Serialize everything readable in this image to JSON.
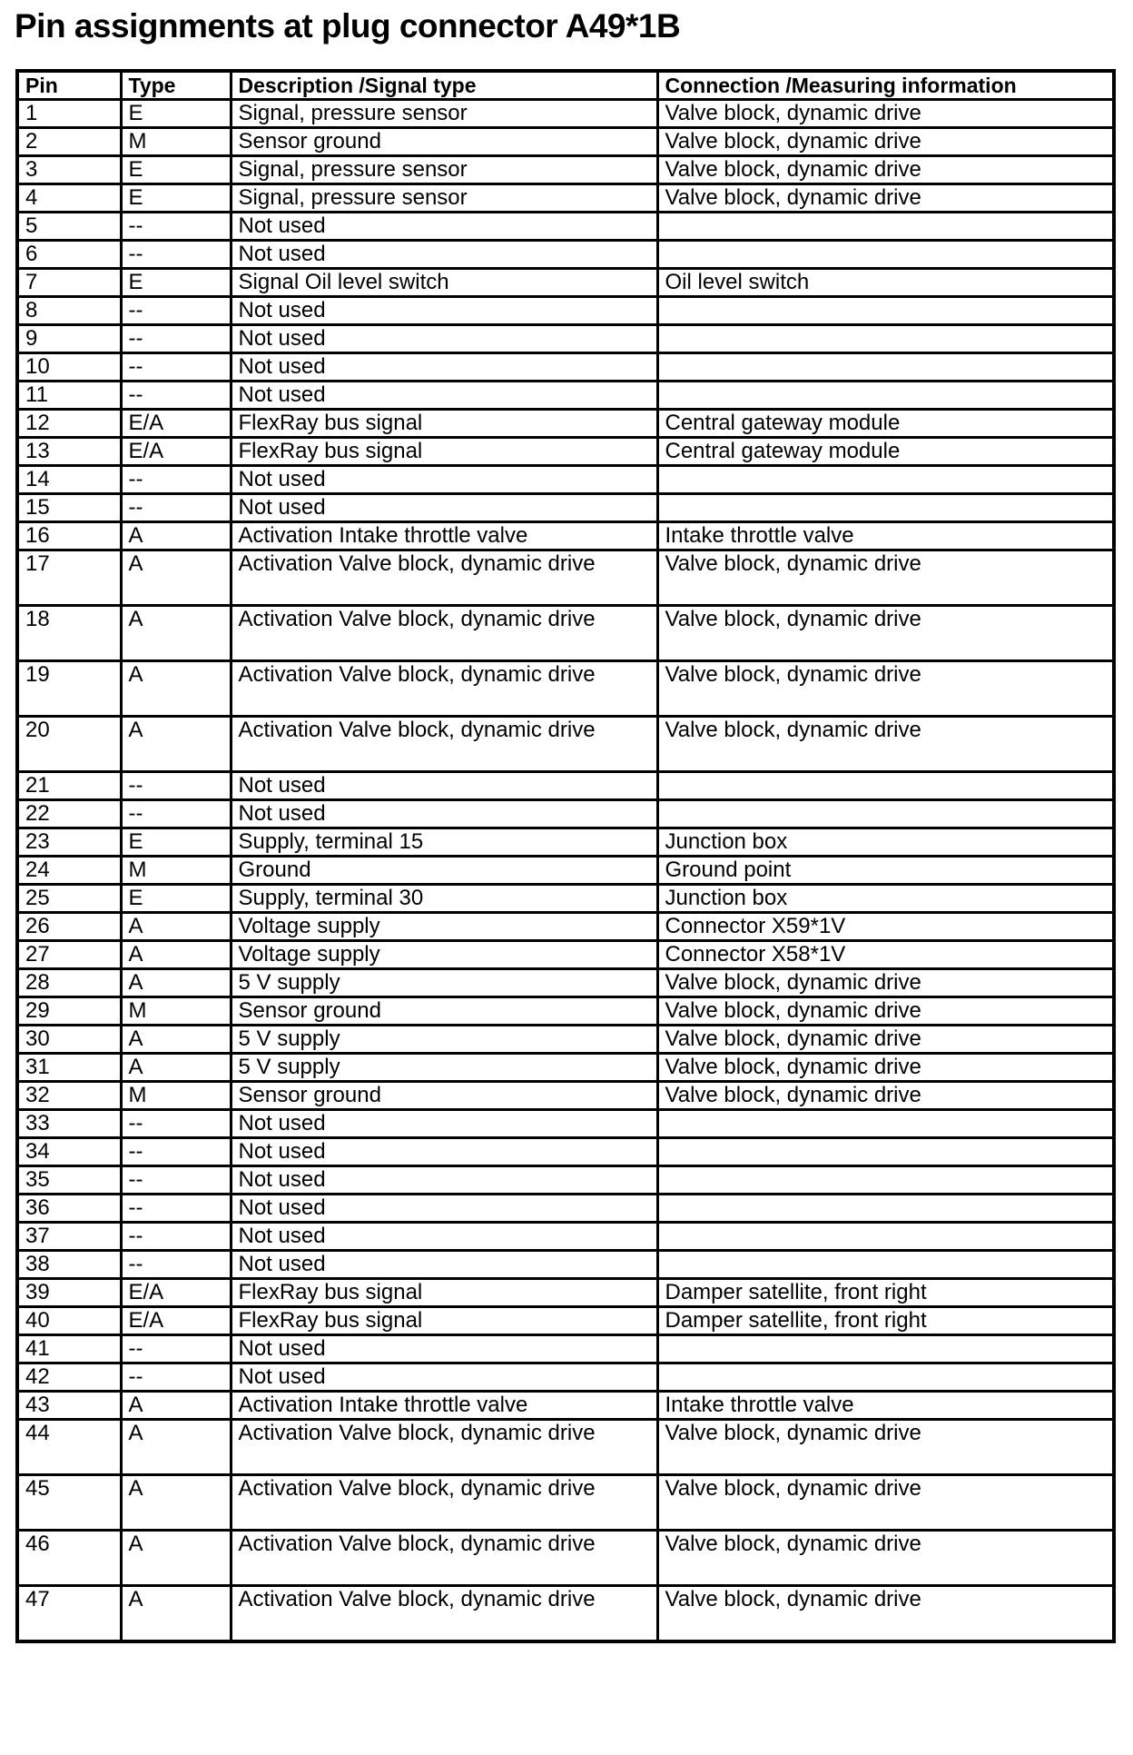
{
  "title": "Pin assignments at plug connector A49*1B",
  "columns": [
    "Pin",
    "Type",
    "Description /Signal type",
    "Connection /Measuring information"
  ],
  "rows": [
    [
      "1",
      "E",
      "Signal, pressure sensor",
      "Valve block, dynamic drive"
    ],
    [
      "2",
      "M",
      "Sensor ground",
      "Valve block, dynamic drive"
    ],
    [
      "3",
      "E",
      "Signal, pressure sensor",
      "Valve block, dynamic drive"
    ],
    [
      "4",
      "E",
      "Signal, pressure sensor",
      "Valve block, dynamic drive"
    ],
    [
      "5",
      "--",
      "Not used",
      ""
    ],
    [
      "6",
      "--",
      "Not used",
      ""
    ],
    [
      "7",
      "E",
      "Signal Oil level switch",
      "Oil level switch"
    ],
    [
      "8",
      "--",
      "Not used",
      ""
    ],
    [
      "9",
      "--",
      "Not used",
      ""
    ],
    [
      "10",
      "--",
      "Not used",
      ""
    ],
    [
      "11",
      "--",
      "Not used",
      ""
    ],
    [
      "12",
      "E/A",
      "FlexRay bus signal",
      "Central gateway module"
    ],
    [
      "13",
      "E/A",
      "FlexRay bus signal",
      "Central gateway module"
    ],
    [
      "14",
      "--",
      "Not used",
      ""
    ],
    [
      "15",
      "--",
      "Not used",
      ""
    ],
    [
      "16",
      "A",
      "Activation Intake throttle valve",
      "Intake throttle valve"
    ],
    [
      "17",
      "A",
      "Activation Valve block, dynamic drive",
      "Valve block, dynamic drive"
    ],
    [
      "18",
      "A",
      "Activation Valve block, dynamic drive",
      "Valve block, dynamic drive"
    ],
    [
      "19",
      "A",
      "Activation Valve block, dynamic drive",
      "Valve block, dynamic drive"
    ],
    [
      "20",
      "A",
      "Activation Valve block, dynamic drive",
      "Valve block, dynamic drive"
    ],
    [
      "21",
      "--",
      "Not used",
      ""
    ],
    [
      "22",
      "--",
      "Not used",
      ""
    ],
    [
      "23",
      "E",
      "Supply, terminal 15",
      "Junction box"
    ],
    [
      "24",
      "M",
      "Ground",
      "Ground point"
    ],
    [
      "25",
      "E",
      "Supply, terminal 30",
      "Junction box"
    ],
    [
      "26",
      "A",
      "Voltage supply",
      "Connector X59*1V"
    ],
    [
      "27",
      "A",
      "Voltage supply",
      "Connector X58*1V"
    ],
    [
      "28",
      "A",
      "5 V supply",
      "Valve block, dynamic drive"
    ],
    [
      "29",
      "M",
      "Sensor ground",
      "Valve block, dynamic drive"
    ],
    [
      "30",
      "A",
      "5 V supply",
      "Valve block, dynamic drive"
    ],
    [
      "31",
      "A",
      "5 V supply",
      "Valve block, dynamic drive"
    ],
    [
      "32",
      "M",
      "Sensor ground",
      "Valve block, dynamic drive"
    ],
    [
      "33",
      "--",
      "Not used",
      ""
    ],
    [
      "34",
      "--",
      "Not used",
      ""
    ],
    [
      "35",
      "--",
      "Not used",
      ""
    ],
    [
      "36",
      "--",
      "Not used",
      ""
    ],
    [
      "37",
      "--",
      "Not used",
      ""
    ],
    [
      "38",
      "--",
      "Not used",
      ""
    ],
    [
      "39",
      "E/A",
      "FlexRay bus signal",
      "Damper satellite, front right"
    ],
    [
      "40",
      "E/A",
      "FlexRay bus signal",
      "Damper satellite, front right"
    ],
    [
      "41",
      "--",
      "Not used",
      ""
    ],
    [
      "42",
      "--",
      "Not used",
      ""
    ],
    [
      "43",
      "A",
      "Activation Intake throttle valve",
      "Intake throttle valve"
    ],
    [
      "44",
      "A",
      "Activation Valve block, dynamic drive",
      "Valve block, dynamic drive"
    ],
    [
      "45",
      "A",
      "Activation Valve block, dynamic drive",
      "Valve block, dynamic drive"
    ],
    [
      "46",
      "A",
      "Activation Valve block, dynamic drive",
      "Valve block, dynamic drive"
    ],
    [
      "47",
      "A",
      "Activation Valve block, dynamic drive",
      "Valve block, dynamic drive"
    ]
  ]
}
